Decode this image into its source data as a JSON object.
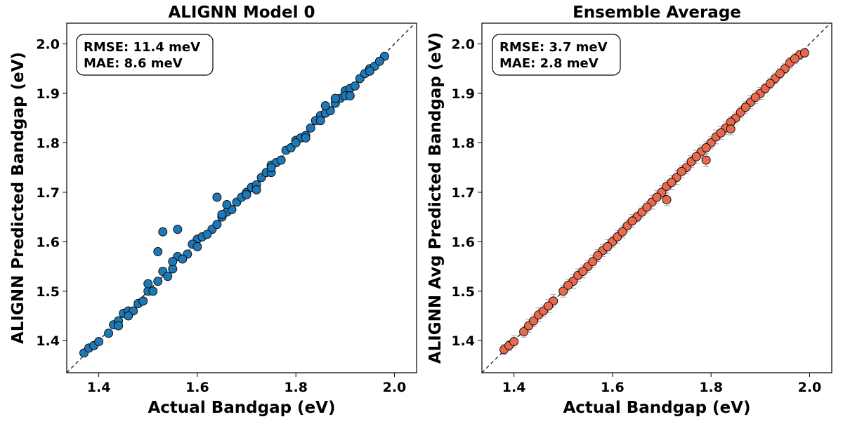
{
  "chart_data": [
    {
      "type": "scatter",
      "title": "ALIGNN Model 0",
      "xlabel": "Actual Bandgap (eV)",
      "ylabel": "ALIGNN Predicted Bandgap (eV)",
      "xlim": [
        1.335,
        2.045
      ],
      "ylim": [
        1.335,
        2.042
      ],
      "xticks": [
        1.4,
        1.6,
        1.8,
        2.0
      ],
      "xtick_labels": [
        "1.4",
        "1.6",
        "1.8",
        "2.0"
      ],
      "yticks": [
        1.4,
        1.5,
        1.6,
        1.7,
        1.8,
        1.9,
        2.0
      ],
      "ytick_labels": [
        "1.4",
        "1.5",
        "1.6",
        "1.7",
        "1.8",
        "1.9",
        "2.0"
      ],
      "grid": false,
      "reference_line": "y = x (dashed)",
      "annotation": {
        "lines": [
          "RMSE: 11.4 meV",
          "MAE: 8.6 meV"
        ],
        "placement": "top-left"
      },
      "marker_color": "#1f77b4",
      "series": [
        {
          "x": [
            1.37,
            1.38,
            1.39,
            1.4,
            1.42,
            1.43,
            1.44,
            1.45,
            1.46,
            1.48,
            1.5,
            1.52,
            1.53,
            1.55,
            1.56,
            1.58,
            1.6,
            1.61,
            1.63,
            1.65,
            1.66,
            1.68,
            1.7,
            1.71,
            1.73,
            1.75,
            1.76,
            1.78,
            1.8,
            1.81,
            1.83,
            1.85,
            1.86,
            1.88,
            1.9,
            1.91,
            1.93,
            1.95,
            1.96,
            1.98,
            1.44,
            1.47,
            1.49,
            1.51,
            1.54,
            1.57,
            1.59,
            1.62,
            1.64,
            1.67,
            1.69,
            1.72,
            1.74,
            1.77,
            1.79,
            1.82,
            1.84,
            1.87,
            1.89,
            1.92,
            1.94,
            1.97,
            1.46,
            1.5,
            1.55,
            1.6,
            1.65,
            1.7,
            1.75,
            1.8,
            1.85,
            1.9,
            1.95,
            1.52,
            1.53,
            1.56,
            1.64,
            1.66,
            1.72,
            1.75,
            1.82,
            1.86,
            1.88,
            1.91
          ],
          "y": [
            1.375,
            1.385,
            1.39,
            1.398,
            1.415,
            1.432,
            1.44,
            1.455,
            1.46,
            1.475,
            1.5,
            1.52,
            1.54,
            1.545,
            1.57,
            1.575,
            1.605,
            1.61,
            1.625,
            1.65,
            1.66,
            1.68,
            1.7,
            1.71,
            1.73,
            1.755,
            1.76,
            1.785,
            1.805,
            1.81,
            1.83,
            1.855,
            1.86,
            1.88,
            1.905,
            1.91,
            1.93,
            1.95,
            1.955,
            1.975,
            1.43,
            1.46,
            1.48,
            1.5,
            1.53,
            1.565,
            1.595,
            1.615,
            1.635,
            1.665,
            1.69,
            1.715,
            1.74,
            1.765,
            1.79,
            1.815,
            1.845,
            1.865,
            1.89,
            1.915,
            1.94,
            1.965,
            1.45,
            1.515,
            1.56,
            1.59,
            1.655,
            1.695,
            1.74,
            1.8,
            1.845,
            1.895,
            1.945,
            1.58,
            1.62,
            1.625,
            1.69,
            1.675,
            1.705,
            1.75,
            1.81,
            1.875,
            1.89,
            1.895
          ]
        }
      ]
    },
    {
      "type": "scatter",
      "title": "Ensemble Average",
      "xlabel": "Actual Bandgap (eV)",
      "ylabel": "ALIGNN Avg Predicted Bandgap (eV)",
      "xlim": [
        1.335,
        2.045
      ],
      "ylim": [
        1.335,
        2.042
      ],
      "xticks": [
        1.4,
        1.6,
        1.8,
        2.0
      ],
      "xtick_labels": [
        "1.4",
        "1.6",
        "1.8",
        "2.0"
      ],
      "yticks": [
        1.4,
        1.5,
        1.6,
        1.7,
        1.8,
        1.9,
        2.0
      ],
      "ytick_labels": [
        "1.4",
        "1.5",
        "1.6",
        "1.7",
        "1.8",
        "1.9",
        "2.0"
      ],
      "grid": false,
      "reference_line": "y = x (dashed)",
      "error_bars": "vertical, gray",
      "annotation": {
        "lines": [
          "RMSE: 3.7 meV",
          "MAE: 2.8 meV"
        ],
        "placement": "top-left"
      },
      "marker_color": "#e9694f",
      "series": [
        {
          "x": [
            1.38,
            1.39,
            1.4,
            1.42,
            1.43,
            1.44,
            1.45,
            1.46,
            1.48,
            1.5,
            1.52,
            1.53,
            1.55,
            1.56,
            1.58,
            1.6,
            1.61,
            1.63,
            1.65,
            1.66,
            1.68,
            1.7,
            1.71,
            1.73,
            1.75,
            1.76,
            1.78,
            1.8,
            1.81,
            1.83,
            1.85,
            1.86,
            1.88,
            1.9,
            1.91,
            1.93,
            1.95,
            1.96,
            1.98,
            1.99,
            1.47,
            1.51,
            1.54,
            1.57,
            1.59,
            1.62,
            1.64,
            1.67,
            1.69,
            1.72,
            1.74,
            1.77,
            1.79,
            1.82,
            1.84,
            1.87,
            1.89,
            1.92,
            1.94,
            1.97,
            1.71,
            1.79,
            1.84
          ],
          "y": [
            1.382,
            1.39,
            1.398,
            1.418,
            1.43,
            1.44,
            1.452,
            1.46,
            1.48,
            1.5,
            1.52,
            1.532,
            1.55,
            1.56,
            1.582,
            1.6,
            1.61,
            1.632,
            1.65,
            1.66,
            1.68,
            1.7,
            1.712,
            1.73,
            1.75,
            1.762,
            1.782,
            1.8,
            1.812,
            1.83,
            1.85,
            1.862,
            1.882,
            1.9,
            1.91,
            1.93,
            1.95,
            1.962,
            1.978,
            1.982,
            1.47,
            1.512,
            1.54,
            1.572,
            1.59,
            1.62,
            1.642,
            1.67,
            1.69,
            1.72,
            1.742,
            1.772,
            1.79,
            1.82,
            1.842,
            1.872,
            1.892,
            1.92,
            1.94,
            1.97,
            1.685,
            1.765,
            1.828
          ],
          "err": [
            0.01,
            0.01,
            0.012,
            0.011,
            0.013,
            0.012,
            0.014,
            0.012,
            0.013,
            0.012,
            0.014,
            0.013,
            0.012,
            0.013,
            0.012,
            0.011,
            0.013,
            0.012,
            0.01,
            0.012,
            0.014,
            0.013,
            0.012,
            0.014,
            0.013,
            0.012,
            0.013,
            0.012,
            0.014,
            0.013,
            0.012,
            0.011,
            0.013,
            0.012,
            0.01,
            0.011,
            0.01,
            0.011,
            0.009,
            0.008,
            0.013,
            0.012,
            0.013,
            0.012,
            0.014,
            0.012,
            0.013,
            0.012,
            0.013,
            0.014,
            0.012,
            0.013,
            0.012,
            0.013,
            0.011,
            0.012,
            0.013,
            0.011,
            0.01,
            0.01,
            0.012,
            0.013,
            0.012
          ]
        }
      ]
    }
  ]
}
